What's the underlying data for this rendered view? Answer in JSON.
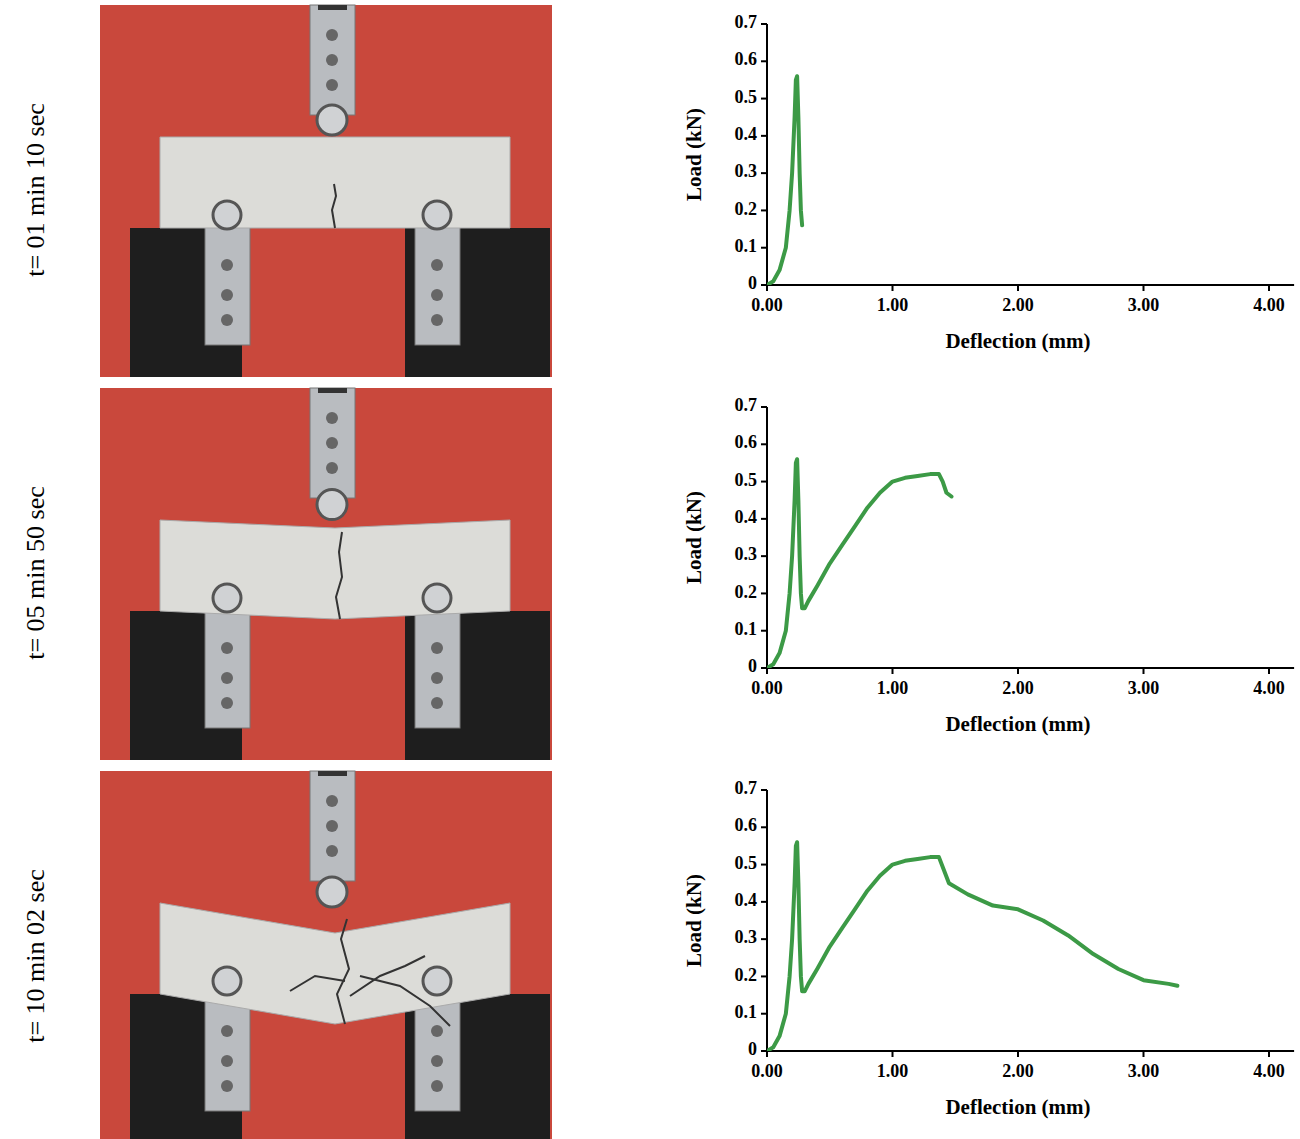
{
  "chart_data": [
    {
      "type": "line",
      "title": "t= 01 min 10 sec",
      "x_label": "Deflection (mm)",
      "y_label": "Load (kN)",
      "x": [
        0,
        0.05,
        0.1,
        0.15,
        0.18,
        0.2,
        0.22,
        0.23,
        0.24,
        0.25,
        0.26,
        0.27,
        0.28
      ],
      "values": [
        0,
        0.01,
        0.04,
        0.1,
        0.2,
        0.3,
        0.45,
        0.55,
        0.56,
        0.45,
        0.3,
        0.2,
        0.16
      ],
      "color": "#3c9a46",
      "xlim": [
        0,
        4.2
      ],
      "ylim": [
        0,
        0.7
      ],
      "xticks": [
        {
          "value": 0,
          "label": "0.00"
        },
        {
          "value": 1,
          "label": "1.00"
        },
        {
          "value": 2,
          "label": "2.00"
        },
        {
          "value": 3,
          "label": "3.00"
        },
        {
          "value": 4,
          "label": "4.00"
        }
      ],
      "yticks": [
        0,
        0.1,
        0.2,
        0.3,
        0.4,
        0.5,
        0.6,
        0.7
      ],
      "grid": false
    },
    {
      "type": "line",
      "title": "t= 05 min 50 sec",
      "x_label": "Deflection (mm)",
      "y_label": "Load (kN)",
      "x": [
        0,
        0.05,
        0.1,
        0.15,
        0.18,
        0.2,
        0.22,
        0.23,
        0.24,
        0.25,
        0.26,
        0.27,
        0.28,
        0.3,
        0.33,
        0.4,
        0.5,
        0.6,
        0.7,
        0.8,
        0.9,
        1.0,
        1.1,
        1.2,
        1.3,
        1.37,
        1.4,
        1.43,
        1.47
      ],
      "values": [
        0,
        0.01,
        0.04,
        0.1,
        0.2,
        0.3,
        0.45,
        0.55,
        0.56,
        0.45,
        0.3,
        0.2,
        0.16,
        0.16,
        0.18,
        0.22,
        0.28,
        0.33,
        0.38,
        0.43,
        0.47,
        0.5,
        0.51,
        0.515,
        0.52,
        0.52,
        0.5,
        0.47,
        0.46
      ],
      "color": "#3c9a46",
      "xlim": [
        0,
        4.2
      ],
      "ylim": [
        0,
        0.7
      ],
      "xticks": [
        {
          "value": 0,
          "label": "0.00"
        },
        {
          "value": 1,
          "label": "1.00"
        },
        {
          "value": 2,
          "label": "2.00"
        },
        {
          "value": 3,
          "label": "3.00"
        },
        {
          "value": 4,
          "label": "4.00"
        }
      ],
      "yticks": [
        0,
        0.1,
        0.2,
        0.3,
        0.4,
        0.5,
        0.6,
        0.7
      ],
      "grid": false
    },
    {
      "type": "line",
      "title": "t= 10 min 02 sec",
      "x_label": "Deflection (mm)",
      "y_label": "Load (kN)",
      "x": [
        0,
        0.05,
        0.1,
        0.15,
        0.18,
        0.2,
        0.22,
        0.23,
        0.24,
        0.25,
        0.26,
        0.27,
        0.28,
        0.3,
        0.33,
        0.4,
        0.5,
        0.6,
        0.7,
        0.8,
        0.9,
        1.0,
        1.1,
        1.2,
        1.3,
        1.37,
        1.45,
        1.6,
        1.8,
        2.0,
        2.2,
        2.4,
        2.6,
        2.8,
        3.0,
        3.2,
        3.27
      ],
      "values": [
        0,
        0.01,
        0.04,
        0.1,
        0.2,
        0.3,
        0.45,
        0.55,
        0.56,
        0.45,
        0.3,
        0.2,
        0.16,
        0.16,
        0.18,
        0.22,
        0.28,
        0.33,
        0.38,
        0.43,
        0.47,
        0.5,
        0.51,
        0.515,
        0.52,
        0.52,
        0.45,
        0.42,
        0.39,
        0.38,
        0.35,
        0.31,
        0.26,
        0.22,
        0.19,
        0.18,
        0.175
      ],
      "color": "#3c9a46",
      "xlim": [
        0,
        4.2
      ],
      "ylim": [
        0,
        0.7
      ],
      "xticks": [
        {
          "value": 0,
          "label": "0.00"
        },
        {
          "value": 1,
          "label": "1.00"
        },
        {
          "value": 2,
          "label": "2.00"
        },
        {
          "value": 3,
          "label": "3.00"
        },
        {
          "value": 4,
          "label": "4.00"
        }
      ],
      "yticks": [
        0,
        0.1,
        0.2,
        0.3,
        0.4,
        0.5,
        0.6,
        0.7
      ],
      "grid": false
    }
  ]
}
